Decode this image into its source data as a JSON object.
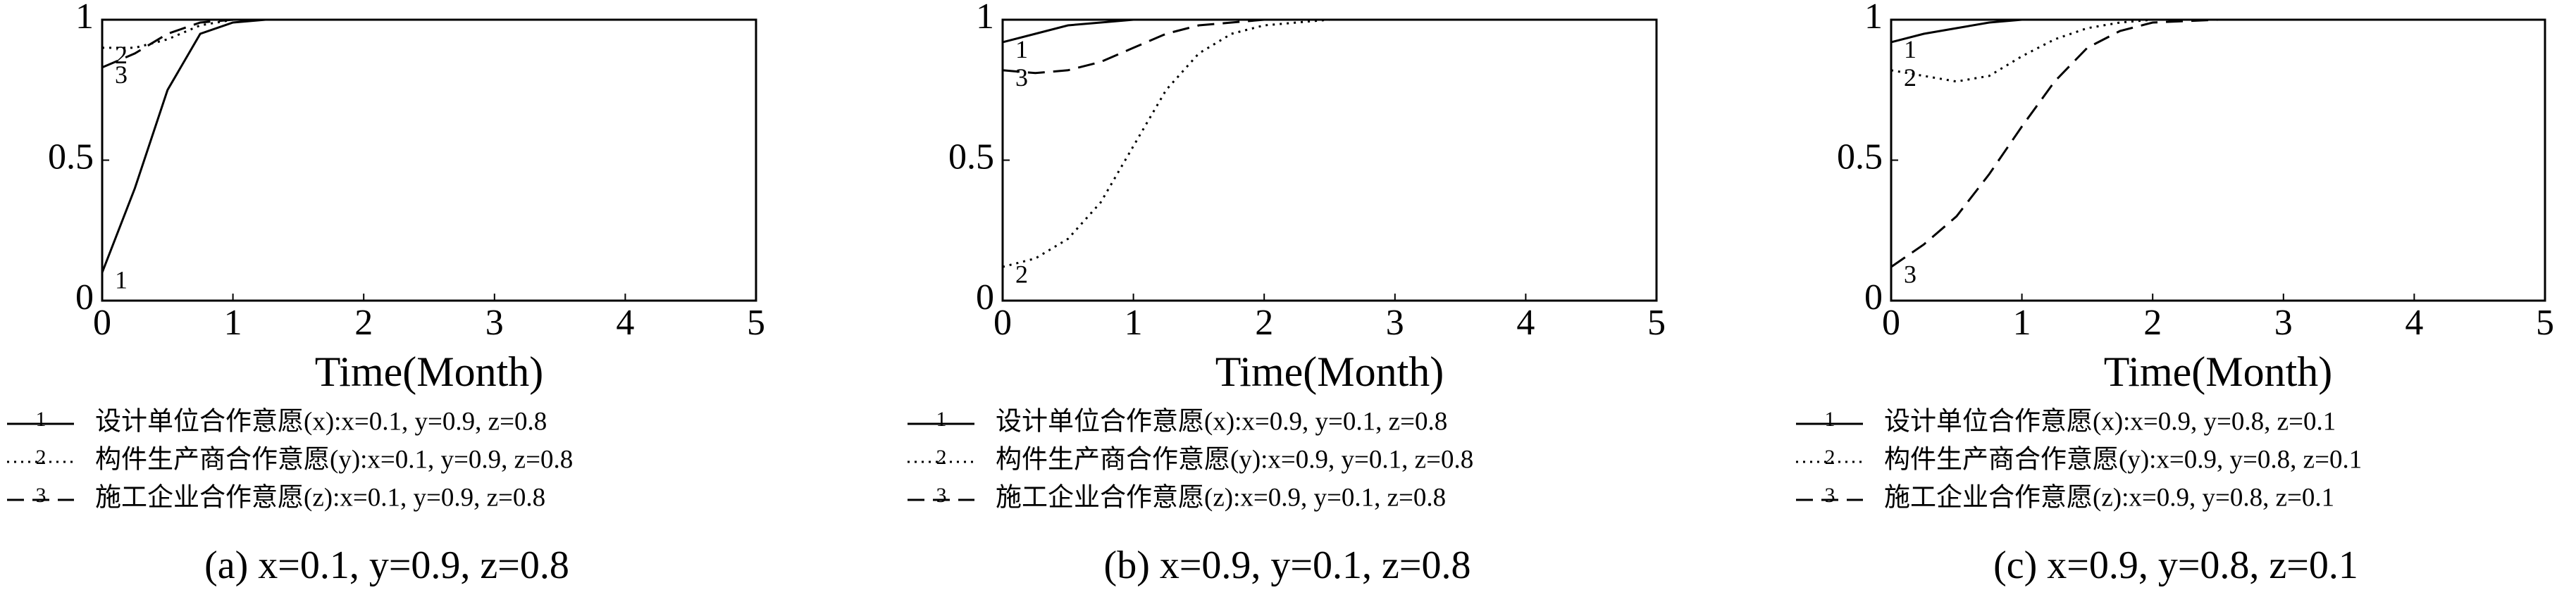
{
  "chart_data": [
    {
      "type": "line",
      "xlabel": "Time(Month)",
      "caption": "(a) x=0.1, y=0.9, z=0.8",
      "x": [
        0,
        0.25,
        0.5,
        0.75,
        1,
        1.25,
        1.5,
        1.75,
        2,
        2.5,
        3,
        3.5,
        4,
        4.5,
        5
      ],
      "xlim": [
        0,
        5
      ],
      "xticks": [
        0,
        1,
        2,
        3,
        4,
        5
      ],
      "ylim": [
        0,
        1
      ],
      "yticks": [
        0,
        0.5,
        1
      ],
      "series": [
        {
          "name": "设计单位合作意愿(x):x=0.1, y=0.9, z=0.8",
          "curve_label": "1",
          "color": "#000000",
          "line_style": "solid",
          "values": [
            0.1,
            0.4,
            0.75,
            0.95,
            0.99,
            1,
            1,
            1,
            1,
            1,
            1,
            1,
            1,
            1,
            1
          ]
        },
        {
          "name": "构件生产商合作意愿(y):x=0.1, y=0.9, z=0.8",
          "curve_label": "2",
          "color": "#000000",
          "line_style": "dotted",
          "values": [
            0.9,
            0.9,
            0.93,
            0.98,
            1,
            1,
            1,
            1,
            1,
            1,
            1,
            1,
            1,
            1,
            1
          ]
        },
        {
          "name": "施工企业合作意愿(z):x=0.1, y=0.9, z=0.8",
          "curve_label": "3",
          "color": "#000000",
          "line_style": "dashed",
          "values": [
            0.83,
            0.88,
            0.95,
            0.99,
            1,
            1,
            1,
            1,
            1,
            1,
            1,
            1,
            1,
            1,
            1
          ]
        }
      ]
    },
    {
      "type": "line",
      "xlabel": "Time(Month)",
      "caption": "(b) x=0.9, y=0.1, z=0.8",
      "x": [
        0,
        0.25,
        0.5,
        0.75,
        1,
        1.25,
        1.5,
        1.75,
        2,
        2.5,
        3,
        3.5,
        4,
        4.5,
        5
      ],
      "xlim": [
        0,
        5
      ],
      "xticks": [
        0,
        1,
        2,
        3,
        4,
        5
      ],
      "ylim": [
        0,
        1
      ],
      "yticks": [
        0,
        0.5,
        1
      ],
      "series": [
        {
          "name": "设计单位合作意愿(x):x=0.9, y=0.1, z=0.8",
          "curve_label": "1",
          "color": "#000000",
          "line_style": "solid",
          "values": [
            0.92,
            0.95,
            0.98,
            0.99,
            1,
            1,
            1,
            1,
            1,
            1,
            1,
            1,
            1,
            1,
            1
          ]
        },
        {
          "name": "构件生产商合作意愿(y):x=0.9, y=0.1, z=0.8",
          "curve_label": "2",
          "color": "#000000",
          "line_style": "dotted",
          "values": [
            0.12,
            0.15,
            0.22,
            0.35,
            0.55,
            0.75,
            0.88,
            0.95,
            0.98,
            1,
            1,
            1,
            1,
            1,
            1
          ]
        },
        {
          "name": "施工企业合作意愿(z):x=0.9, y=0.1, z=0.8",
          "curve_label": "3",
          "color": "#000000",
          "line_style": "dashed",
          "values": [
            0.82,
            0.81,
            0.82,
            0.85,
            0.9,
            0.95,
            0.98,
            0.99,
            1,
            1,
            1,
            1,
            1,
            1,
            1
          ]
        }
      ]
    },
    {
      "type": "line",
      "xlabel": "Time(Month)",
      "caption": "(c) x=0.9, y=0.8, z=0.1",
      "x": [
        0,
        0.25,
        0.5,
        0.75,
        1,
        1.25,
        1.5,
        1.75,
        2,
        2.5,
        3,
        3.5,
        4,
        4.5,
        5
      ],
      "xlim": [
        0,
        5
      ],
      "xticks": [
        0,
        1,
        2,
        3,
        4,
        5
      ],
      "ylim": [
        0,
        1
      ],
      "yticks": [
        0,
        0.5,
        1
      ],
      "series": [
        {
          "name": "设计单位合作意愿(x):x=0.9, y=0.8, z=0.1",
          "curve_label": "1",
          "color": "#000000",
          "line_style": "solid",
          "values": [
            0.92,
            0.95,
            0.97,
            0.99,
            1,
            1,
            1,
            1,
            1,
            1,
            1,
            1,
            1,
            1,
            1
          ]
        },
        {
          "name": "构件生产商合作意愿(y):x=0.9, y=0.8, z=0.1",
          "curve_label": "2",
          "color": "#000000",
          "line_style": "dotted",
          "values": [
            0.82,
            0.8,
            0.78,
            0.8,
            0.87,
            0.93,
            0.97,
            0.99,
            1,
            1,
            1,
            1,
            1,
            1,
            1
          ]
        },
        {
          "name": "施工企业合作意愿(z):x=0.9, y=0.8, z=0.1",
          "curve_label": "3",
          "color": "#000000",
          "line_style": "dashed",
          "values": [
            0.12,
            0.2,
            0.3,
            0.45,
            0.62,
            0.78,
            0.9,
            0.96,
            0.99,
            1,
            1,
            1,
            1,
            1,
            1
          ]
        }
      ]
    }
  ]
}
